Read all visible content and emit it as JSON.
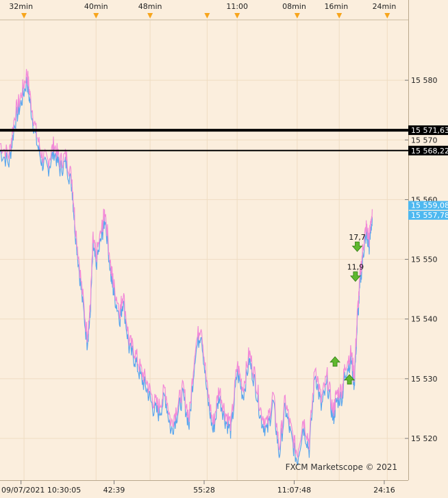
{
  "chart_data": {
    "type": "line",
    "title": "",
    "xlabel": "",
    "ylabel": "",
    "ylim": [
      15513,
      15590
    ],
    "grid": true,
    "background": "#fbeedd",
    "colors": {
      "bid": "#f28ad8",
      "ask": "#5aa6ee",
      "hline": "#000000",
      "price_tag": "#4db8f0",
      "arrow": "#5fb82e",
      "marker": "#f7a51d"
    },
    "top_axis_labels": [
      {
        "label": "32min",
        "t": 3.5
      },
      {
        "label": "40min",
        "t": 16
      },
      {
        "label": "48min",
        "t": 25
      },
      {
        "label": "11:00",
        "t": 39.5
      },
      {
        "label": "08min",
        "t": 49
      },
      {
        "label": "16min",
        "t": 56
      },
      {
        "label": "24min",
        "t": 64
      }
    ],
    "top_markers": [
      4,
      16,
      25,
      34.5,
      39.5,
      49.5,
      56.5,
      64.5
    ],
    "bottom_axis_labels": [
      {
        "label": "09/07/2021 10:30:05",
        "t": 3.5
      },
      {
        "label": "42:39",
        "t": 19
      },
      {
        "label": "55:28",
        "t": 34
      },
      {
        "label": "11:07:48",
        "t": 49
      },
      {
        "label": "24:16",
        "t": 64
      }
    ],
    "y_ticks": [
      15520,
      15530,
      15540,
      15550,
      15560,
      15570,
      15580
    ],
    "y_tick_labels": [
      "15 520",
      "15 530",
      "15 540",
      "15 550",
      "15 560",
      "15 570",
      "15 580"
    ],
    "hlines": [
      {
        "value": 15571.63,
        "label": "15 571,63",
        "width": 4
      },
      {
        "value": 15568.22,
        "label": "15 568,22",
        "width": 2
      }
    ],
    "price_tags": [
      {
        "value": 15559.08,
        "label": "15 559,08"
      },
      {
        "value": 15557.78,
        "label": "15 557,78"
      }
    ],
    "trade_markers": [
      {
        "t": 59.5,
        "value": 15552,
        "direction": "down",
        "label": "17,7"
      },
      {
        "t": 59.2,
        "value": 15547,
        "direction": "down",
        "label": "11,9"
      },
      {
        "t": 55.8,
        "value": 15533,
        "direction": "up",
        "label": ""
      },
      {
        "t": 58.2,
        "value": 15530,
        "direction": "up",
        "label": ""
      }
    ],
    "watermark": "FXCM Marketscope © 2021",
    "series": [
      {
        "x": [
          0,
          1.5,
          2.5,
          3.5,
          4.5,
          5,
          6,
          7,
          8,
          9,
          10,
          11,
          12,
          12.5,
          13.5,
          14.5,
          15,
          15.5,
          16,
          17,
          17.5,
          18.5,
          19,
          20,
          20.5,
          21.5,
          22.5,
          23.5,
          24.5,
          25.5,
          26.5,
          27.5,
          28.5,
          29.5,
          30.5,
          31.5,
          32.5,
          33.5,
          34.5,
          35.5,
          36.5,
          37.5,
          38.5,
          39.5,
          40.5,
          41.5,
          42.5,
          43.5,
          44.5,
          45.5,
          46.5,
          47.5,
          48.5,
          49.5,
          50.5,
          51.5,
          52.5,
          53.5,
          54.5,
          55.5,
          56,
          57,
          57.5,
          58.5,
          59,
          59.5,
          60,
          60.5,
          61,
          61.5,
          62
        ],
        "values": [
          15569,
          15567,
          15574,
          15577,
          15581,
          15577,
          15571,
          15567,
          15566,
          15569,
          15566,
          15567,
          15563,
          15556,
          15546,
          15537,
          15541,
          15553,
          15550,
          15555,
          15558,
          15548,
          15545,
          15541,
          15544,
          15536,
          15534,
          15531,
          15529,
          15526,
          15525,
          15528,
          15522,
          15525,
          15528,
          15523,
          15535,
          15539,
          15528,
          15522,
          15528,
          15524,
          15522,
          15532,
          15528,
          15534,
          15530,
          15524,
          15522,
          15527,
          15518,
          15526,
          15521,
          15517,
          15523,
          15519,
          15532,
          15526,
          15530,
          15524,
          15527,
          15528,
          15532,
          15534,
          15530,
          15540,
          15547,
          15552,
          15555,
          15553,
          15558
        ]
      }
    ]
  }
}
